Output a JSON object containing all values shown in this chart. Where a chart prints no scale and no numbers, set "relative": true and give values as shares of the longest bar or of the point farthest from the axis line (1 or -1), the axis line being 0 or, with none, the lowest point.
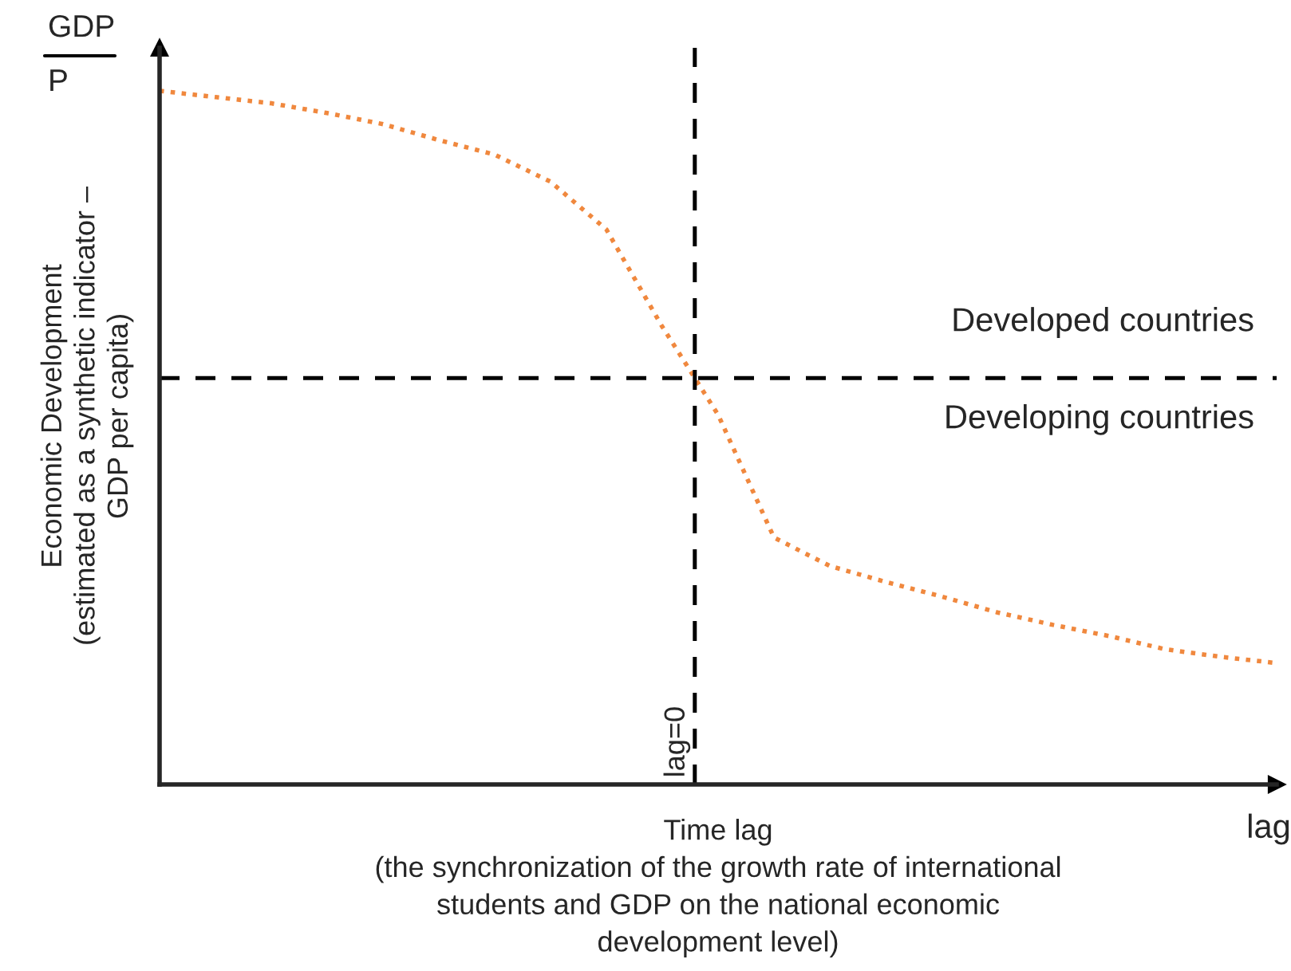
{
  "chart_data": {
    "type": "line",
    "relative": true,
    "xlabel": "Time lag\n(the synchronization of the growth rate of international\nstudents and GDP on the national economic\ndevelopment level)",
    "ylabel": "Economic Development\n(estimated as a synthetic indicator –\nGDP per capita)",
    "categories": [
      null,
      null,
      null,
      null,
      null,
      null,
      null,
      null,
      null,
      null,
      null,
      null,
      null,
      null,
      null,
      null,
      null,
      null,
      null,
      null,
      null
    ],
    "series": [
      {
        "color": "#f0883e",
        "line_style": "dotted",
        "values": [
          1,
          0.991,
          0.982,
          0.968,
          0.952,
          0.929,
          0.908,
          0.869,
          0.8,
          0.66,
          0.533,
          0.356,
          0.315,
          0.292,
          0.271,
          0.248,
          0.23,
          0.214,
          0.195,
          0.184,
          0.175
        ]
      }
    ],
    "ref_lines": [
      {
        "axis": "y",
        "value": 0.586,
        "color": "#000000",
        "line_style": "dashed"
      }
    ],
    "annotations": [
      "GDP",
      "P",
      "lag",
      "Developed countries",
      "Developing countries",
      "lag=0"
    ],
    "marker": "none"
  }
}
